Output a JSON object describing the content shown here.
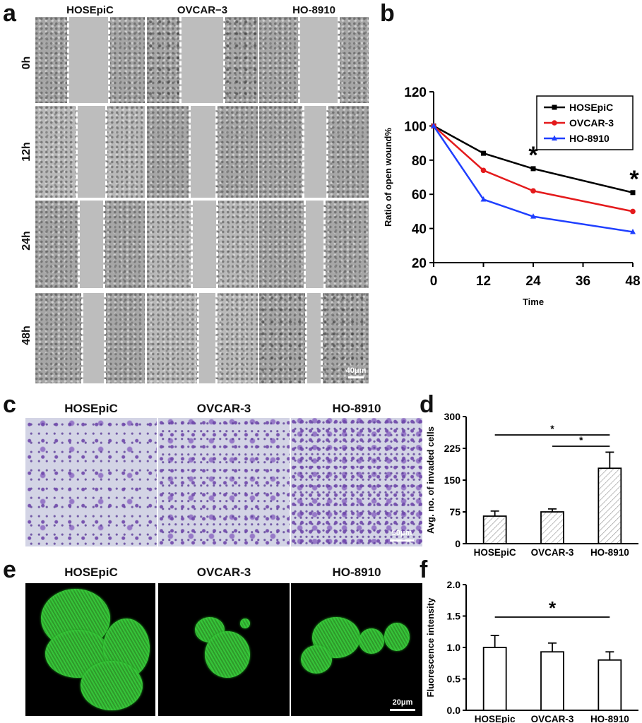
{
  "panel_a": {
    "label": "a",
    "columns": [
      "HOSEpiC",
      "OVCAR−3",
      "HO-8910"
    ],
    "rows": [
      "0h",
      "12h",
      "24h",
      "48h"
    ],
    "scale_bar": "40μm"
  },
  "panel_c": {
    "label": "c",
    "columns": [
      "HOSEpiC",
      "OVCAR-3",
      "HO-8910"
    ],
    "scale_bar": "50μm"
  },
  "panel_e": {
    "label": "e",
    "columns": [
      "HOSEpiC",
      "OVCAR-3",
      "HO-8910"
    ],
    "scale_bar": "20μm"
  },
  "chart_data": [
    {
      "panel": "b",
      "type": "line",
      "xlabel": "Time",
      "ylabel": "Ratio of open wound%",
      "x": [
        0,
        12,
        24,
        48
      ],
      "xlim": [
        0,
        48
      ],
      "ylim": [
        20,
        120
      ],
      "xticks": [
        "0",
        "12",
        "24",
        "36",
        "48"
      ],
      "yticks": [
        "20",
        "40",
        "60",
        "80",
        "100",
        "120"
      ],
      "legend_position": "top-right",
      "series": [
        {
          "name": "HOSEpiC",
          "color": "#000000",
          "marker": "square",
          "values": [
            100,
            84,
            75,
            61
          ]
        },
        {
          "name": "OVCAR-3",
          "color": "#e41a1c",
          "marker": "circle",
          "values": [
            100,
            74,
            62,
            50
          ]
        },
        {
          "name": "HO-8910",
          "color": "#1f3fff",
          "marker": "triangle",
          "values": [
            100,
            57,
            47,
            38
          ]
        }
      ],
      "annotations": [
        "*",
        "*"
      ]
    },
    {
      "panel": "d",
      "type": "bar",
      "ylabel": "Avg. no. of invaded cells",
      "categories": [
        "HOSEpiC",
        "OVCAR-3",
        "HO-8910"
      ],
      "values": [
        65,
        75,
        178
      ],
      "errors": [
        12,
        7,
        38
      ],
      "ylim": [
        0,
        300
      ],
      "yticks": [
        "0",
        "75",
        "150",
        "225",
        "300"
      ],
      "bar_fill": "hatched",
      "significance": [
        {
          "from": 0,
          "to": 2,
          "label": "*"
        },
        {
          "from": 1,
          "to": 2,
          "label": "*"
        }
      ]
    },
    {
      "panel": "f",
      "type": "bar",
      "ylabel": "Fluorescence intensity",
      "categories": [
        "HOSEpic",
        "OVCAR-3",
        "HO-8910"
      ],
      "values": [
        1.0,
        0.93,
        0.8
      ],
      "errors": [
        0.19,
        0.14,
        0.13
      ],
      "ylim": [
        0,
        2.0
      ],
      "yticks": [
        "0.0",
        "0.5",
        "1.0",
        "1.5",
        "2.0"
      ],
      "bar_fill": "white",
      "significance": [
        {
          "from": 0,
          "to": 2,
          "label": "*"
        }
      ]
    }
  ],
  "panel_labels": {
    "b": "b",
    "d": "d",
    "f": "f"
  }
}
